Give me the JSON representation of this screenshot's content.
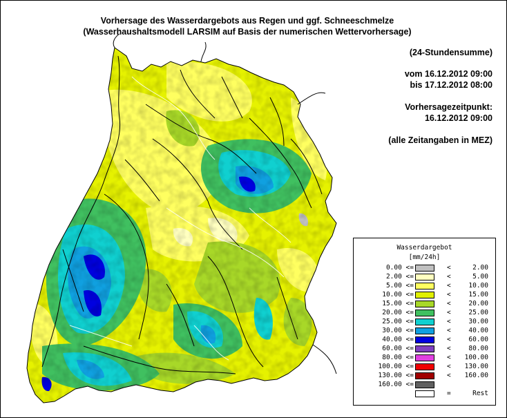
{
  "header": {
    "line1": "Vorhersage des Wasserdargebots aus Regen und ggf. Schneeschmelze",
    "line2": "(Wasserhaushaltsmodell LARSIM auf Basis der numerischen Wettervorhersage)"
  },
  "info": {
    "sum": "(24-Stundensumme)",
    "from": "vom 16.12.2012 09:00",
    "to": "bis 17.12.2012 08:00",
    "forecast_label": "Vorhersagezeitpunkt:",
    "forecast_time": "16.12.2012 09:00",
    "timezone_note": "(alle Zeitangaben in MEZ)"
  },
  "legend": {
    "title": "Wasserdargebot",
    "unit": "[mm/24h]",
    "classes": [
      {
        "low": "0.00 <=",
        "op": "<",
        "high": "2.00",
        "color": "#c0c0c0"
      },
      {
        "low": "2.00 <=",
        "op": "<",
        "high": "5.00",
        "color": "#ffffc0"
      },
      {
        "low": "5.00 <=",
        "op": "<",
        "high": "10.00",
        "color": "#ffff60"
      },
      {
        "low": "10.00 <=",
        "op": "<",
        "high": "15.00",
        "color": "#e0f000"
      },
      {
        "low": "15.00 <=",
        "op": "<",
        "high": "20.00",
        "color": "#a8d828"
      },
      {
        "low": "20.00 <=",
        "op": "<",
        "high": "25.00",
        "color": "#40c060"
      },
      {
        "low": "25.00 <=",
        "op": "<",
        "high": "30.00",
        "color": "#10d0d0"
      },
      {
        "low": "30.00 <=",
        "op": "<",
        "high": "40.00",
        "color": "#10a0e0"
      },
      {
        "low": "40.00 <=",
        "op": "<",
        "high": "60.00",
        "color": "#0000e0"
      },
      {
        "low": "60.00 <=",
        "op": "<",
        "high": "80.00",
        "color": "#8040c0"
      },
      {
        "low": "80.00 <=",
        "op": "<",
        "high": "100.00",
        "color": "#e040e0"
      },
      {
        "low": "100.00 <=",
        "op": "<",
        "high": "130.00",
        "color": "#f00000"
      },
      {
        "low": "130.00 <=",
        "op": "<",
        "high": "160.00",
        "color": "#a00000"
      },
      {
        "low": "160.00 <=",
        "op": "",
        "high": "",
        "color": "#606060"
      },
      {
        "low": "",
        "op": "=",
        "high": "Rest",
        "color": "#ffffff"
      }
    ]
  }
}
